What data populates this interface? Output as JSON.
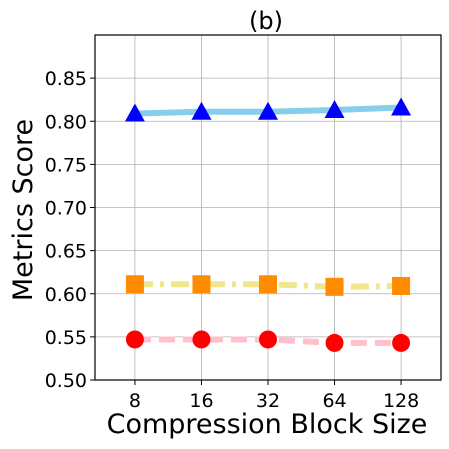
{
  "chart_data": {
    "type": "line",
    "title": "(b)",
    "xlabel": "Compression Block Size",
    "ylabel": "Metrics Score",
    "categories": [
      "8",
      "16",
      "32",
      "64",
      "128"
    ],
    "y_ticks": [
      "0.50",
      "0.55",
      "0.60",
      "0.65",
      "0.70",
      "0.75",
      "0.80",
      "0.85"
    ],
    "ylim": [
      0.5,
      0.9
    ],
    "grid": true,
    "series": [
      {
        "values": [
          0.809,
          0.811,
          0.811,
          0.813,
          0.816
        ],
        "line_color": "#87ceeb",
        "marker_color": "#0000ff",
        "marker": "triangle",
        "line_style": "solid"
      },
      {
        "values": [
          0.611,
          0.611,
          0.611,
          0.608,
          0.609
        ],
        "line_color": "#f0e68c",
        "marker_color": "#ff8c00",
        "marker": "square",
        "line_style": "dashdot"
      },
      {
        "values": [
          0.547,
          0.547,
          0.547,
          0.543,
          0.543
        ],
        "line_color": "#ffc0cb",
        "marker_color": "#ff0000",
        "marker": "circle",
        "line_style": "dashed"
      }
    ]
  }
}
